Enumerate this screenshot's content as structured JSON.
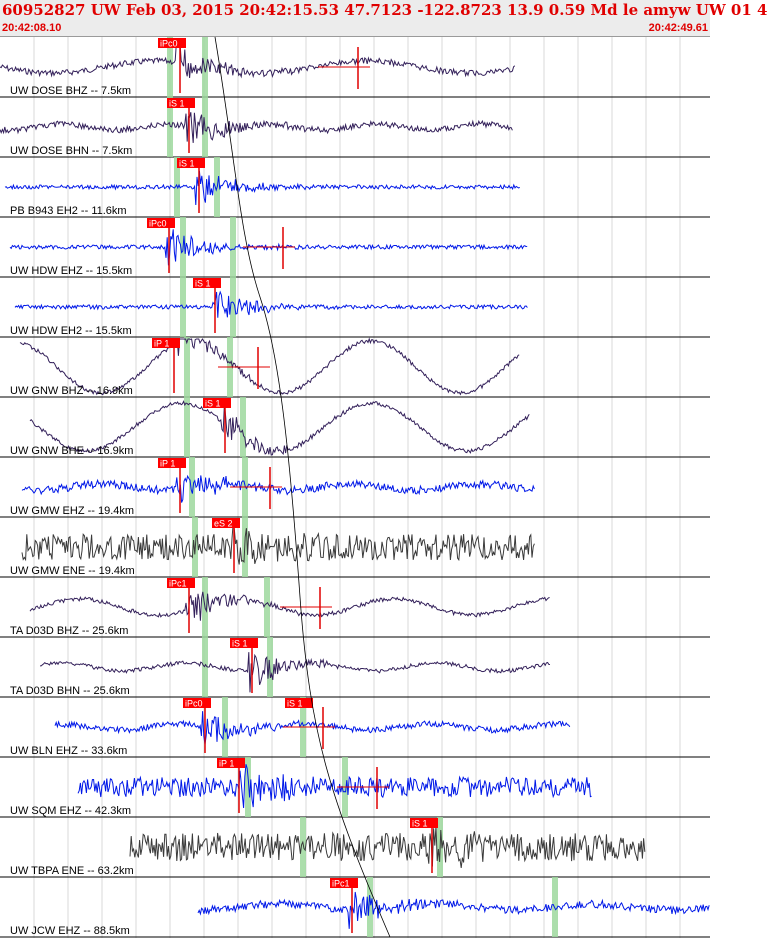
{
  "header": {
    "title": "60952827 UW Feb 03, 2015 20:42:15.53   47.7123 -122.8723 13.9 0.59 Md le amyw UW 01   4",
    "start_time": "20:42:08.10",
    "end_time": "20:42:49.61"
  },
  "colors": {
    "header_text": "#e00000",
    "pick_box": "#ff0000",
    "pick_text": "#ffffff",
    "highlight": "#9ed89e",
    "trace_dark": "#33205a",
    "trace_blue": "#0018e8",
    "trace_gray": "#3a3a3a",
    "travel_curve": "#000000",
    "coda": "#e00000"
  },
  "traces": [
    {
      "label": "UW DOSE BHZ -- 7.5km",
      "pick": "iPc0",
      "color": "dark"
    },
    {
      "label": "UW DOSE BHN -- 7.5km",
      "pick": "iS 1",
      "color": "dark"
    },
    {
      "label": "PB B943 EH2 -- 11.6km",
      "pick": "iS 1",
      "color": "blue"
    },
    {
      "label": "UW HDW EHZ -- 15.5km",
      "pick": "iPc0",
      "color": "blue"
    },
    {
      "label": "UW HDW EH2 -- 15.5km",
      "pick": "iS 1",
      "color": "blue"
    },
    {
      "label": "UW GNW BHZ -- 16.9km",
      "pick": "iP 1",
      "color": "dark"
    },
    {
      "label": "UW GNW BHE -- 16.9km",
      "pick": "iS 1",
      "color": "dark"
    },
    {
      "label": "UW GMW EHZ -- 19.4km",
      "pick": "iP 1",
      "color": "blue"
    },
    {
      "label": "UW GMW ENE -- 19.4km",
      "pick": "eS 2",
      "color": "gray"
    },
    {
      "label": "TA D03D BHZ -- 25.6km",
      "pick": "iPc1",
      "color": "dark"
    },
    {
      "label": "TA D03D BHN -- 25.6km",
      "pick": "iS 1",
      "color": "dark"
    },
    {
      "label": "UW BLN EHZ -- 33.6km",
      "pick": "iPc0",
      "pick2": "iS 1",
      "color": "blue"
    },
    {
      "label": "UW SQM EHZ -- 42.3km",
      "pick": "iP 1",
      "color": "blue"
    },
    {
      "label": "UW TBPA ENE -- 63.2km",
      "pick": "iS 1",
      "color": "gray"
    },
    {
      "label": "UW JCW EHZ -- 88.5km",
      "pick": "iPc1",
      "color": "blue"
    }
  ]
}
